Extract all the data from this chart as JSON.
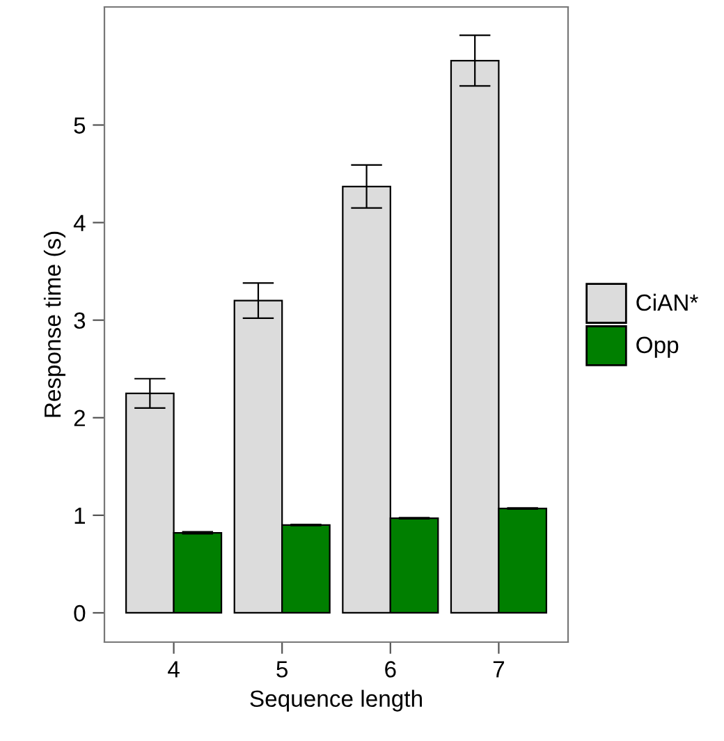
{
  "chart_data": {
    "type": "bar",
    "xlabel": "Sequence length",
    "ylabel": "Response time (s)",
    "categories": [
      "4",
      "5",
      "6",
      "7"
    ],
    "series": [
      {
        "name": "CiAN*",
        "color": "#dcdcdc",
        "values": [
          2.25,
          3.2,
          4.37,
          5.66
        ],
        "errors": [
          0.15,
          0.18,
          0.22,
          0.26
        ]
      },
      {
        "name": "Opp",
        "color": "#007f00",
        "values": [
          0.82,
          0.9,
          0.97,
          1.07
        ],
        "errors": [
          0.01,
          0.005,
          0.005,
          0.005
        ]
      }
    ],
    "ylim": [
      -0.3,
      6.21
    ],
    "yticks": [
      0,
      1,
      2,
      3,
      4,
      5
    ],
    "grid": false,
    "legend": "right"
  }
}
